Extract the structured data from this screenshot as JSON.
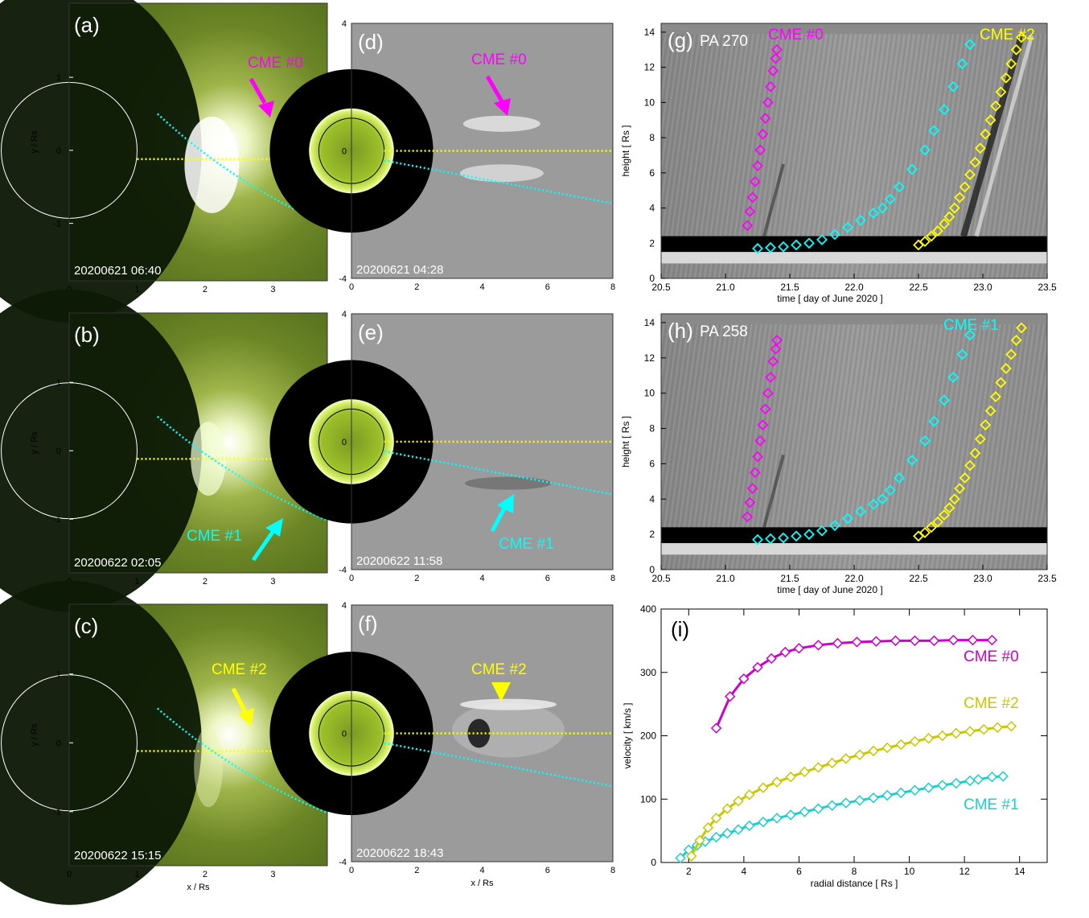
{
  "figure": {
    "panels_left": [
      {
        "label": "(a)",
        "timestamp": "20200621 06:40",
        "cme": "CME #0",
        "color": "#ff00ff",
        "arrow": "down-right"
      },
      {
        "label": "(b)",
        "timestamp": "20200622 02:05",
        "cme": "CME #1",
        "color": "#00ffff",
        "arrow": "up-right"
      },
      {
        "label": "(c)",
        "timestamp": "20200622 15:15",
        "cme": "CME #2",
        "color": "#ffff00",
        "arrow": "down"
      }
    ],
    "panels_mid": [
      {
        "label": "(d)",
        "timestamp": "20200621 04:28",
        "cme": "CME #0",
        "color": "#ff00ff"
      },
      {
        "label": "(e)",
        "timestamp": "20200622 11:58",
        "cme": "CME #1",
        "color": "#00ffff"
      },
      {
        "label": "(f)",
        "timestamp": "20200622 18:43",
        "cme": "CME #2",
        "color": "#ffff00"
      }
    ],
    "left_axes": {
      "xlabel": "x / Rs",
      "ylabel": "y / Rs",
      "xticks": [
        "0",
        "1",
        "2",
        "3"
      ],
      "yticks": [
        "1",
        "0",
        "-1"
      ]
    },
    "mid_axes": {
      "xticks": [
        "0",
        "2",
        "4",
        "6",
        "8"
      ],
      "yticks": [
        "4",
        "2",
        "0",
        "-2",
        "-4"
      ],
      "xlabel": "x / Rs"
    },
    "jmaps": [
      {
        "label": "(g)",
        "pa": "PA 270",
        "cme_labels": [
          {
            "text": "CME #0",
            "color": "#ff00ff"
          },
          {
            "text": "CME #2",
            "color": "#ffff00"
          }
        ]
      },
      {
        "label": "(h)",
        "pa": "PA 258",
        "cme_labels": [
          {
            "text": "CME #1",
            "color": "#00ffff"
          }
        ]
      }
    ],
    "jmap_axes": {
      "xlabel": "time  [ day of June 2020 ]",
      "ylabel": "height  [ Rs ]",
      "xticks": [
        "20.5",
        "21.0",
        "21.5",
        "22.0",
        "22.5",
        "23.0",
        "23.5"
      ],
      "yticks": [
        "0",
        "2",
        "4",
        "6",
        "8",
        "10",
        "12",
        "14"
      ]
    }
  },
  "chart_data": [
    {
      "type": "scatter",
      "panel": "(g)",
      "xlabel": "time  [ day of June 2020 ]",
      "ylabel": "height  [ Rs ]",
      "xlim": [
        20.5,
        23.5
      ],
      "ylim": [
        0,
        14.5
      ],
      "series": [
        {
          "name": "CME #0",
          "color": "#ff00ff",
          "x": [
            21.17,
            21.19,
            21.21,
            21.23,
            21.25,
            21.27,
            21.29,
            21.31,
            21.33,
            21.35,
            21.37,
            21.39,
            21.4
          ],
          "y": [
            3.0,
            3.8,
            4.6,
            5.5,
            6.4,
            7.3,
            8.2,
            9.1,
            10.0,
            10.9,
            11.8,
            12.5,
            13.0
          ]
        },
        {
          "name": "CME #1",
          "color": "#00ffff",
          "x": [
            21.25,
            21.35,
            21.45,
            21.55,
            21.65,
            21.75,
            21.85,
            21.95,
            22.05,
            22.15,
            22.22,
            22.28,
            22.35,
            22.45,
            22.55,
            22.62,
            22.7,
            22.77,
            22.84,
            22.9
          ],
          "y": [
            1.7,
            1.75,
            1.8,
            1.9,
            2.0,
            2.2,
            2.5,
            2.9,
            3.3,
            3.7,
            4.0,
            4.5,
            5.2,
            6.2,
            7.3,
            8.4,
            9.6,
            10.9,
            12.2,
            13.3
          ]
        },
        {
          "name": "CME #2",
          "color": "#ffff00",
          "x": [
            22.5,
            22.55,
            22.6,
            22.65,
            22.7,
            22.74,
            22.78,
            22.82,
            22.86,
            22.9,
            22.94,
            22.98,
            23.02,
            23.06,
            23.1,
            23.14,
            23.18,
            23.22,
            23.26,
            23.3
          ],
          "y": [
            1.9,
            2.1,
            2.4,
            2.7,
            3.1,
            3.5,
            4.0,
            4.6,
            5.2,
            5.9,
            6.6,
            7.4,
            8.2,
            9.0,
            9.8,
            10.6,
            11.4,
            12.2,
            13.0,
            13.7
          ]
        }
      ]
    },
    {
      "type": "scatter",
      "panel": "(h)",
      "xlabel": "time  [ day of June 2020 ]",
      "ylabel": "height  [ Rs ]",
      "xlim": [
        20.5,
        23.5
      ],
      "ylim": [
        0,
        14.5
      ],
      "series": [
        {
          "name": "CME #0",
          "color": "#ff00ff",
          "x": [
            21.17,
            21.19,
            21.21,
            21.23,
            21.25,
            21.27,
            21.29,
            21.31,
            21.33,
            21.35,
            21.37,
            21.39,
            21.4
          ],
          "y": [
            3.0,
            3.8,
            4.6,
            5.5,
            6.4,
            7.3,
            8.2,
            9.1,
            10.0,
            10.9,
            11.8,
            12.5,
            13.0
          ]
        },
        {
          "name": "CME #1",
          "color": "#00ffff",
          "x": [
            21.25,
            21.35,
            21.45,
            21.55,
            21.65,
            21.75,
            21.85,
            21.95,
            22.05,
            22.15,
            22.22,
            22.28,
            22.35,
            22.45,
            22.55,
            22.62,
            22.7,
            22.77,
            22.84,
            22.9
          ],
          "y": [
            1.7,
            1.75,
            1.8,
            1.9,
            2.0,
            2.2,
            2.5,
            2.9,
            3.3,
            3.7,
            4.0,
            4.5,
            5.2,
            6.2,
            7.3,
            8.4,
            9.6,
            10.9,
            12.2,
            13.3
          ]
        },
        {
          "name": "CME #2",
          "color": "#ffff00",
          "x": [
            22.5,
            22.55,
            22.6,
            22.65,
            22.7,
            22.74,
            22.78,
            22.82,
            22.86,
            22.9,
            22.94,
            22.98,
            23.02,
            23.06,
            23.1,
            23.14,
            23.18,
            23.22,
            23.26,
            23.3
          ],
          "y": [
            1.9,
            2.1,
            2.4,
            2.7,
            3.1,
            3.5,
            4.0,
            4.6,
            5.2,
            5.9,
            6.6,
            7.4,
            8.2,
            9.0,
            9.8,
            10.6,
            11.4,
            12.2,
            13.0,
            13.7
          ]
        }
      ]
    },
    {
      "type": "line",
      "panel": "(i)",
      "xlabel": "radial distance  [ Rs ]",
      "ylabel": "velocity  [ km/s ]",
      "xlim": [
        1.0,
        15.0
      ],
      "ylim": [
        0,
        400
      ],
      "xticks": [
        "2",
        "4",
        "6",
        "8",
        "10",
        "12",
        "14"
      ],
      "yticks": [
        "0",
        "100",
        "200",
        "300",
        "400"
      ],
      "series": [
        {
          "name": "CME #0",
          "color": "#cc00cc",
          "x": [
            3.0,
            3.5,
            4.0,
            4.5,
            5.0,
            5.5,
            6.0,
            6.7,
            7.4,
            8.1,
            8.8,
            9.5,
            10.2,
            10.9,
            11.6,
            12.3,
            13.0
          ],
          "y": [
            212,
            262,
            290,
            308,
            322,
            332,
            338,
            343,
            346,
            348,
            349,
            350,
            350,
            350,
            351,
            351,
            351
          ]
        },
        {
          "name": "CME #1",
          "color": "#1ecece",
          "x": [
            1.7,
            2.0,
            2.3,
            2.6,
            3.0,
            3.4,
            3.8,
            4.2,
            4.7,
            5.2,
            5.7,
            6.2,
            6.7,
            7.2,
            7.7,
            8.2,
            8.7,
            9.2,
            9.7,
            10.2,
            10.7,
            11.2,
            11.7,
            12.2,
            12.5,
            13.0,
            13.4
          ],
          "y": [
            7,
            20,
            27,
            33,
            40,
            46,
            52,
            58,
            64,
            70,
            75,
            80,
            85,
            90,
            94,
            98,
            102,
            106,
            110,
            114,
            118,
            122,
            125,
            129,
            131,
            135,
            136
          ]
        },
        {
          "name": "CME #2",
          "color": "#c8c800",
          "x": [
            2.1,
            2.4,
            2.7,
            3.0,
            3.4,
            3.8,
            4.2,
            4.7,
            5.2,
            5.7,
            6.2,
            6.7,
            7.2,
            7.7,
            8.2,
            8.7,
            9.2,
            9.7,
            10.2,
            10.7,
            11.2,
            11.7,
            12.2,
            12.7,
            13.2,
            13.7
          ],
          "y": [
            10,
            35,
            55,
            70,
            85,
            97,
            107,
            118,
            127,
            135,
            143,
            150,
            157,
            164,
            170,
            176,
            181,
            186,
            191,
            196,
            200,
            204,
            207,
            210,
            213,
            215
          ]
        }
      ]
    }
  ]
}
